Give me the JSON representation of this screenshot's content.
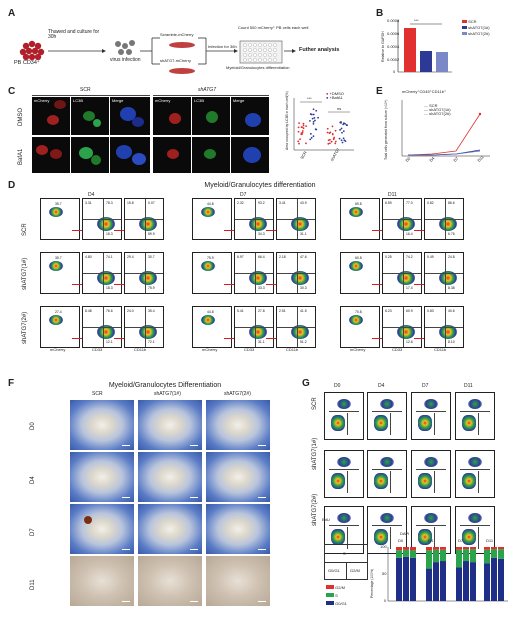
{
  "panels": {
    "A": {
      "label": "A",
      "cells": "PB CD34⁺",
      "step1": "Thawed and culture for 30h",
      "step2": "virus infection",
      "scr": "Scramble-mCherry",
      "sh": "shATG7-mCherry",
      "infection": "Infection for 36h",
      "count": "Count 500 mCherry⁺ PB cells each well",
      "diff": "Myeloid/Granulocytes differentiation",
      "further": "Futher analysis"
    },
    "B": {
      "label": "B",
      "ylabel": "Relative to GAPDH",
      "legend": [
        "SCR",
        "shATG7(1#)",
        "shATG7(2#)"
      ],
      "sig": "***",
      "yticks": [
        "0.0008",
        "0.0006",
        "0.0004",
        "0.0002",
        "0"
      ]
    },
    "C": {
      "label": "C",
      "groups": [
        "SCR",
        "shATG7"
      ],
      "channels": [
        "mCherry",
        "LC3B",
        "Merge"
      ],
      "rows": [
        "DMSO",
        "BafA1"
      ],
      "scatter_ylabel": "Area occupied by LC3B in each cell(%)",
      "legend": [
        "+DMSO",
        "+BafA1"
      ],
      "xcats": [
        "SCR",
        "shATG7"
      ],
      "sig": [
        "***",
        "ns"
      ]
    },
    "E": {
      "label": "E",
      "title": "mCherry⁺CD45⁺CD11b⁺",
      "ylabel": "Total cells generated from culture (×10⁴)",
      "legend": [
        "SCR",
        "shATG7(1#)",
        "shATG7(2#)"
      ],
      "xcats": [
        "D0",
        "D4",
        "D7",
        "D11"
      ],
      "sig": [
        "****",
        "****",
        "****"
      ]
    },
    "D": {
      "label": "D",
      "title": "Myeloid/Granulocytes differentiation",
      "days": [
        "D4",
        "D7",
        "D11"
      ],
      "rows": [
        "SCR",
        "shATG7(1#)",
        "shATG7(2#)"
      ],
      "xaxes": [
        "mCherry",
        "CD33",
        "CD11b"
      ],
      "yaxis": "CD45",
      "quads": [
        [
          [
            "35.7",
            "3.31",
            "78.3",
            "18.3",
            "6.28",
            "15.8",
            "0.07",
            "89.9",
            "11.5"
          ],
          [
            "44.8",
            "2.32",
            "93.2",
            "34.3",
            "21.6",
            "3.41",
            "43.9",
            "31.1",
            "22.4"
          ],
          [
            "69.8",
            "6.59",
            "77.0",
            "16.4",
            "66.9",
            "0.82",
            "86.6",
            "6.76",
            "9.64"
          ]
        ],
        [
          [
            "35.7",
            "4.80",
            "74.1",
            "18.3",
            "6.03",
            "29.4",
            "30.7",
            "75.9",
            "15.4"
          ],
          [
            "75.9",
            "6.97",
            "66.4",
            "33.3",
            "15.8",
            "2.18",
            "47.6",
            "30.3",
            "30.5"
          ],
          [
            "60.8",
            "0.25",
            "74.2",
            "17.4",
            "48.8",
            "0.49",
            "24.8",
            "8.38",
            "11.4"
          ]
        ],
        [
          [
            "27.4",
            "8.48",
            "76.6",
            "12.1",
            "6.93",
            "24.0",
            "35.4",
            "72.1",
            "9.70"
          ],
          [
            "44.8",
            "5.41",
            "27.8",
            "31.1",
            "18.4",
            "2.51",
            "41.5",
            "51.2",
            "28.0"
          ],
          [
            "70.8",
            "6.23",
            "60.9",
            "12.6",
            "49.5",
            "0.83",
            "40.6",
            "8.10",
            "26.1"
          ]
        ]
      ]
    },
    "F": {
      "label": "F",
      "title": "Myeloid/Granulocytes Differentiation",
      "cols": [
        "SCR",
        "shATG7(1#)",
        "shATG7(2#)"
      ],
      "rows": [
        "D0",
        "D4",
        "D7",
        "D11"
      ]
    },
    "G": {
      "label": "G",
      "days": [
        "D0",
        "D4",
        "D7",
        "D11"
      ],
      "rows": [
        "SCR",
        "shATG7(1#)",
        "shATG7(2#)"
      ],
      "xaxis": "DAPI",
      "yaxis": "EdU",
      "gates": [
        "S",
        "G0/G1",
        "G2/M"
      ],
      "legend": [
        "G2/M",
        "S",
        "G0/G1"
      ],
      "ylabel": "Percentage (100%)",
      "xcats": [
        "SCR",
        "shATG7(1#)",
        "shATG7(2#)"
      ],
      "yticks": [
        "100",
        "50",
        "0"
      ]
    }
  },
  "colors": {
    "red": "#e03030",
    "blue": "#2c3a96",
    "navy": "#1f2f88",
    "green": "#2aa34a",
    "bg_blue": "#3f63b8"
  }
}
